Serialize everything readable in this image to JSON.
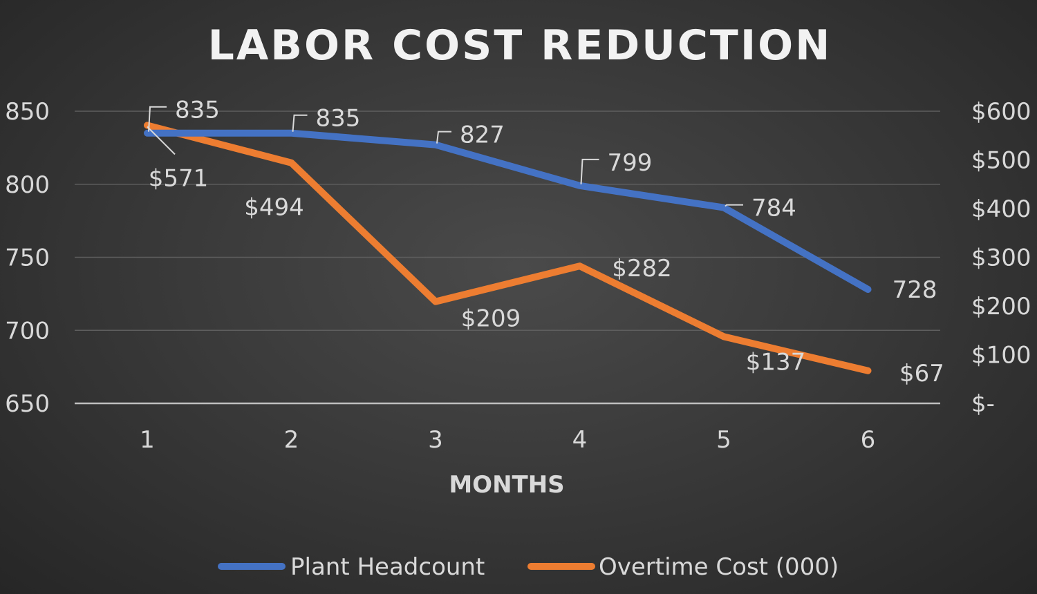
{
  "chart_data": {
    "type": "line",
    "title": "LABOR COST REDUCTION",
    "xlabel": "MONTHS",
    "categories": [
      "1",
      "2",
      "3",
      "4",
      "5",
      "6"
    ],
    "y_left": {
      "range": [
        650,
        850
      ],
      "ticks": [
        "850",
        "800",
        "750",
        "700",
        "650"
      ],
      "tick_values": [
        850,
        800,
        750,
        700,
        650
      ]
    },
    "y_right": {
      "range": [
        0,
        600
      ],
      "ticks": [
        "$600",
        "$500",
        "$400",
        "$300",
        "$200",
        "$100",
        "$-"
      ],
      "tick_values": [
        600,
        500,
        400,
        300,
        200,
        100,
        0
      ]
    },
    "series": [
      {
        "name": "Plant Headcount",
        "axis": "left",
        "color": "#4472C4",
        "values": [
          835,
          835,
          827,
          799,
          784,
          728
        ],
        "labels": [
          "835",
          "835",
          "827",
          "799",
          "784",
          "728"
        ]
      },
      {
        "name": "Overtime Cost (000)",
        "axis": "right",
        "color": "#ED7D31",
        "values": [
          571,
          494,
          209,
          282,
          137,
          67
        ],
        "labels": [
          "$571",
          "$494",
          "$209",
          "$282",
          "$137",
          "$67"
        ]
      }
    ],
    "grid": true,
    "legend_position": "bottom"
  }
}
